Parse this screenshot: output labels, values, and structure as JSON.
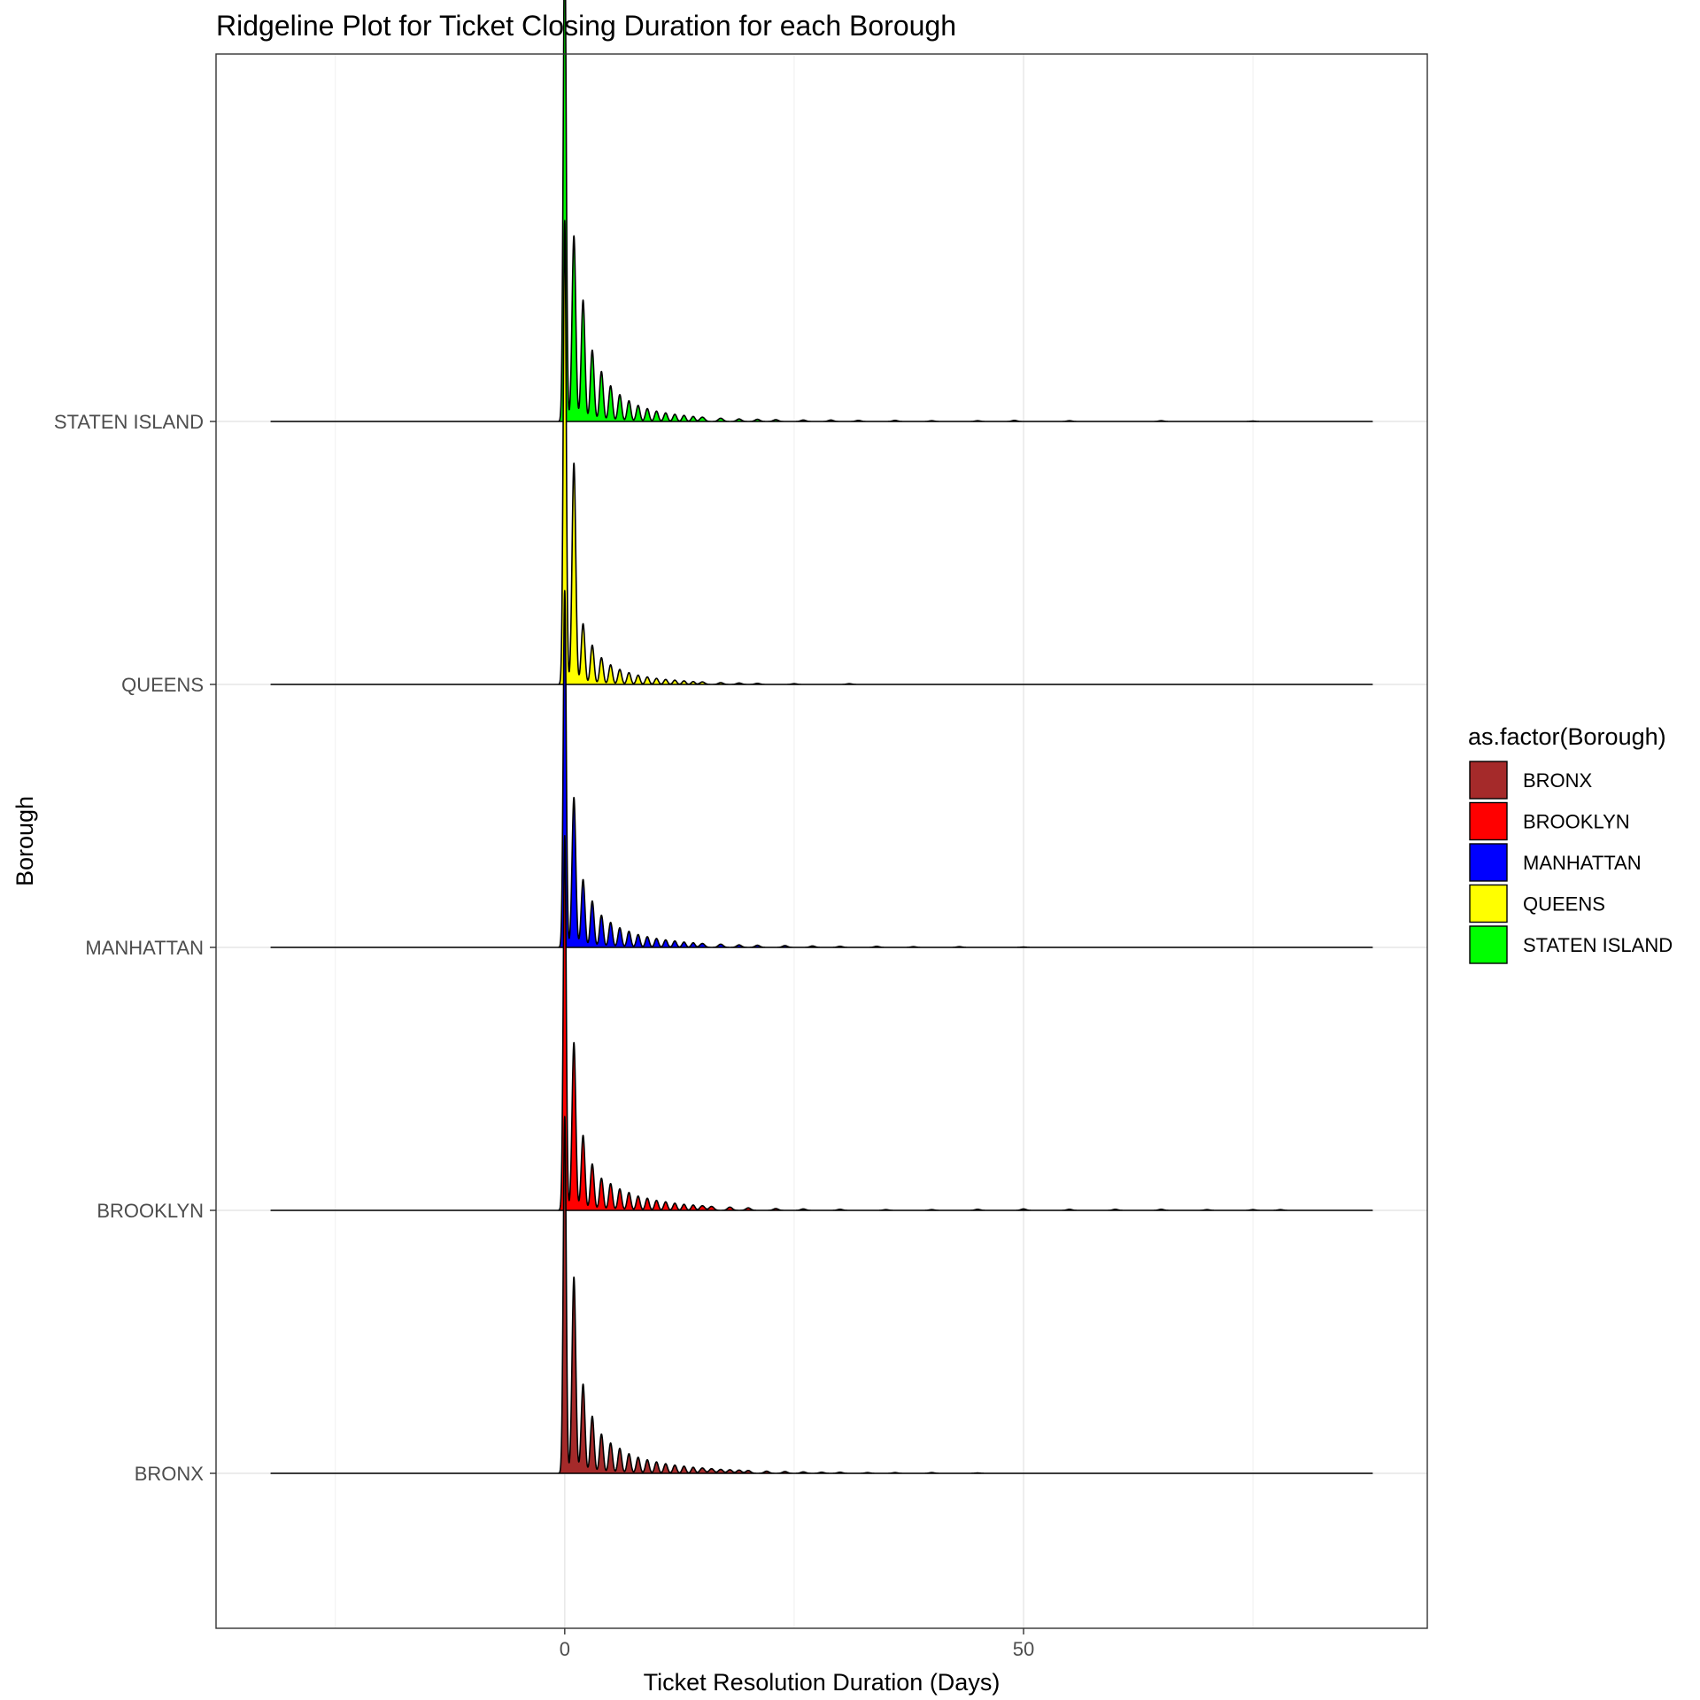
{
  "chart_data": {
    "type": "ridgeline",
    "title": "Ridgeline Plot for Ticket Closing Duration for each Borough",
    "xlabel": "Ticket Resolution Duration (Days)",
    "ylabel": "Borough",
    "xlim": [
      -38,
      94
    ],
    "x_ticks": [
      0,
      50
    ],
    "x_tick_labels": [
      "0",
      "50"
    ],
    "x_minor_gridlines": [
      -25,
      25,
      75
    ],
    "categories": [
      "BRONX",
      "BROOKLYN",
      "MANHATTAN",
      "QUEENS",
      "STATEN ISLAND"
    ],
    "density_range": [
      -32,
      88
    ],
    "legend": {
      "title": "as.factor(Borough)",
      "position": "right"
    },
    "grid": true,
    "series": [
      {
        "name": "BRONX",
        "color": "#A52A2A",
        "peaks": [
          [
            0,
            1.0
          ],
          [
            1,
            0.55
          ],
          [
            2,
            0.25
          ],
          [
            3,
            0.16
          ],
          [
            4,
            0.11
          ],
          [
            5,
            0.085
          ],
          [
            6,
            0.07
          ],
          [
            7,
            0.055
          ],
          [
            8,
            0.045
          ],
          [
            9,
            0.038
          ],
          [
            10,
            0.032
          ],
          [
            11,
            0.027
          ],
          [
            12,
            0.023
          ],
          [
            13,
            0.02
          ],
          [
            14,
            0.017
          ],
          [
            15,
            0.015
          ],
          [
            16,
            0.013
          ],
          [
            17,
            0.011
          ],
          [
            18,
            0.01
          ],
          [
            19,
            0.009
          ],
          [
            20,
            0.008
          ],
          [
            22,
            0.006
          ],
          [
            24,
            0.005
          ],
          [
            26,
            0.004
          ],
          [
            28,
            0.003
          ],
          [
            30,
            0.003
          ],
          [
            33,
            0.002
          ],
          [
            36,
            0.002
          ],
          [
            40,
            0.002
          ],
          [
            45,
            0.001
          ]
        ]
      },
      {
        "name": "BROOKLYN",
        "color": "#FF0000",
        "peaks": [
          [
            0,
            1.05
          ],
          [
            1,
            0.47
          ],
          [
            2,
            0.21
          ],
          [
            3,
            0.13
          ],
          [
            4,
            0.09
          ],
          [
            5,
            0.075
          ],
          [
            6,
            0.06
          ],
          [
            7,
            0.05
          ],
          [
            8,
            0.04
          ],
          [
            9,
            0.034
          ],
          [
            10,
            0.028
          ],
          [
            11,
            0.024
          ],
          [
            12,
            0.02
          ],
          [
            13,
            0.017
          ],
          [
            14,
            0.015
          ],
          [
            15,
            0.013
          ],
          [
            16,
            0.011
          ],
          [
            18,
            0.009
          ],
          [
            20,
            0.007
          ],
          [
            23,
            0.005
          ],
          [
            26,
            0.004
          ],
          [
            30,
            0.003
          ],
          [
            35,
            0.002
          ],
          [
            40,
            0.002
          ],
          [
            45,
            0.003
          ],
          [
            50,
            0.004
          ],
          [
            55,
            0.003
          ],
          [
            60,
            0.003
          ],
          [
            65,
            0.003
          ],
          [
            70,
            0.002
          ],
          [
            75,
            0.002
          ],
          [
            78,
            0.002
          ]
        ]
      },
      {
        "name": "MANHATTAN",
        "color": "#0000FF",
        "peaks": [
          [
            0,
            1.0
          ],
          [
            1,
            0.42
          ],
          [
            2,
            0.19
          ],
          [
            3,
            0.13
          ],
          [
            4,
            0.09
          ],
          [
            5,
            0.07
          ],
          [
            6,
            0.055
          ],
          [
            7,
            0.045
          ],
          [
            8,
            0.036
          ],
          [
            9,
            0.03
          ],
          [
            10,
            0.025
          ],
          [
            11,
            0.021
          ],
          [
            12,
            0.018
          ],
          [
            13,
            0.015
          ],
          [
            14,
            0.013
          ],
          [
            15,
            0.011
          ],
          [
            17,
            0.009
          ],
          [
            19,
            0.007
          ],
          [
            21,
            0.006
          ],
          [
            24,
            0.005
          ],
          [
            27,
            0.004
          ],
          [
            30,
            0.003
          ],
          [
            34,
            0.003
          ],
          [
            38,
            0.002
          ],
          [
            43,
            0.002
          ],
          [
            50,
            0.001
          ]
        ]
      },
      {
        "name": "QUEENS",
        "color": "#FFFF00",
        "peaks": [
          [
            0,
            1.3
          ],
          [
            1,
            0.62
          ],
          [
            2,
            0.17
          ],
          [
            3,
            0.11
          ],
          [
            4,
            0.075
          ],
          [
            5,
            0.055
          ],
          [
            6,
            0.042
          ],
          [
            7,
            0.033
          ],
          [
            8,
            0.026
          ],
          [
            9,
            0.021
          ],
          [
            10,
            0.017
          ],
          [
            11,
            0.014
          ],
          [
            12,
            0.012
          ],
          [
            13,
            0.01
          ],
          [
            14,
            0.008
          ],
          [
            15,
            0.007
          ],
          [
            17,
            0.005
          ],
          [
            19,
            0.004
          ],
          [
            21,
            0.003
          ],
          [
            25,
            0.002
          ],
          [
            31,
            0.002
          ]
        ]
      },
      {
        "name": "STATEN ISLAND",
        "color": "#00FF00",
        "peaks": [
          [
            0,
            1.38
          ],
          [
            1,
            0.52
          ],
          [
            2,
            0.34
          ],
          [
            3,
            0.2
          ],
          [
            4,
            0.14
          ],
          [
            5,
            0.1
          ],
          [
            6,
            0.075
          ],
          [
            7,
            0.058
          ],
          [
            8,
            0.045
          ],
          [
            9,
            0.036
          ],
          [
            10,
            0.029
          ],
          [
            11,
            0.024
          ],
          [
            12,
            0.02
          ],
          [
            13,
            0.017
          ],
          [
            14,
            0.014
          ],
          [
            15,
            0.012
          ],
          [
            17,
            0.009
          ],
          [
            19,
            0.007
          ],
          [
            21,
            0.006
          ],
          [
            23,
            0.005
          ],
          [
            26,
            0.004
          ],
          [
            29,
            0.004
          ],
          [
            32,
            0.003
          ],
          [
            36,
            0.003
          ],
          [
            40,
            0.002
          ],
          [
            45,
            0.002
          ],
          [
            49,
            0.003
          ],
          [
            55,
            0.002
          ],
          [
            65,
            0.002
          ],
          [
            75,
            0.001
          ]
        ]
      }
    ]
  }
}
